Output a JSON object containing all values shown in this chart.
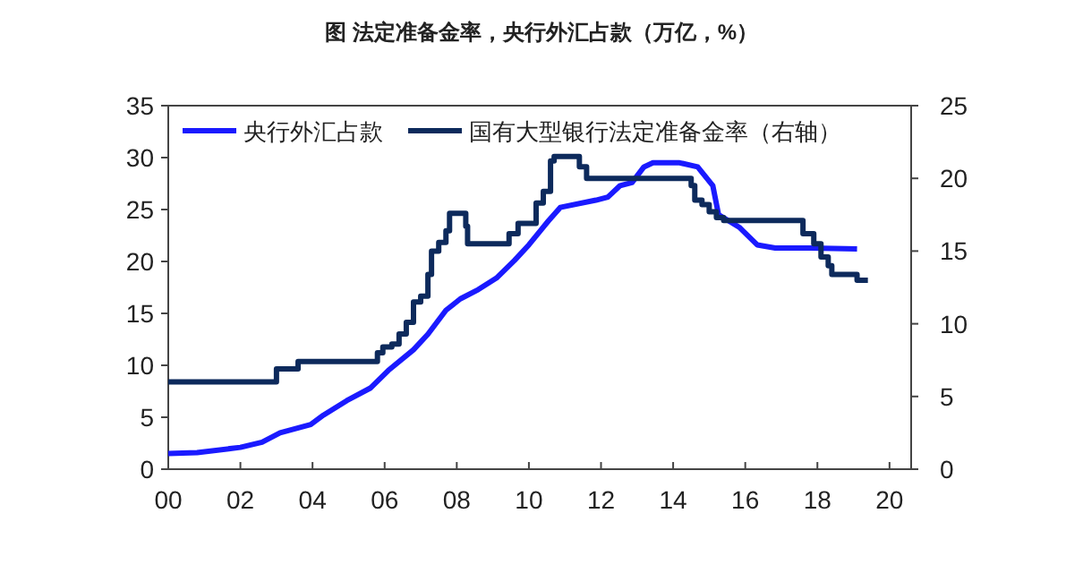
{
  "chart_data": {
    "type": "line",
    "title": "图  法定准备金率，央行外汇占款（万亿，%）",
    "xlim": [
      0,
      20.6
    ],
    "xticks": [
      {
        "value": 0,
        "label": "00"
      },
      {
        "value": 2,
        "label": "02"
      },
      {
        "value": 4,
        "label": "04"
      },
      {
        "value": 6,
        "label": "06"
      },
      {
        "value": 8,
        "label": "08"
      },
      {
        "value": 10,
        "label": "10"
      },
      {
        "value": 12,
        "label": "12"
      },
      {
        "value": 14,
        "label": "14"
      },
      {
        "value": 16,
        "label": "16"
      },
      {
        "value": 18,
        "label": "18"
      },
      {
        "value": 20,
        "label": "20"
      }
    ],
    "ylim": [
      0,
      35
    ],
    "yticks": [
      0,
      5,
      10,
      15,
      20,
      25,
      30,
      35
    ],
    "y2lim": [
      0,
      25
    ],
    "y2ticks": [
      0,
      5,
      10,
      15,
      20,
      25
    ],
    "legend": "top",
    "grid": false,
    "series": [
      {
        "name": "央行外汇占款",
        "color": "#1a1aff",
        "x": [
          0,
          0.8,
          2.0,
          2.6,
          3.1,
          3.95,
          4.3,
          4.95,
          5.6,
          6.1,
          6.8,
          7.2,
          7.7,
          8.1,
          8.6,
          9.1,
          9.6,
          10.0,
          10.54,
          10.87,
          11.86,
          12.19,
          12.53,
          12.86,
          13.19,
          13.44,
          14.18,
          14.68,
          15.1,
          15.26,
          15.83,
          16.33,
          16.83,
          17.8,
          19.1
        ],
        "values": [
          1.5,
          1.6,
          2.1,
          2.6,
          3.5,
          4.3,
          5.2,
          6.6,
          7.8,
          9.5,
          11.5,
          13.0,
          15.3,
          16.4,
          17.3,
          18.4,
          20.1,
          21.6,
          23.9,
          25.2,
          25.9,
          26.2,
          27.3,
          27.6,
          29.1,
          29.5,
          29.5,
          29.1,
          27.3,
          24.5,
          23.3,
          21.6,
          21.3,
          21.3,
          21.2
        ]
      },
      {
        "name": "国有大型银行法定准备金率（右轴）",
        "type": "step",
        "axis": "y2",
        "color": "#0d2a5c",
        "x": [
          0,
          3.0,
          3.6,
          5.8,
          5.95,
          6.2,
          6.4,
          6.6,
          6.8,
          7.0,
          7.2,
          7.3,
          7.5,
          7.7,
          7.8,
          8.25,
          8.3,
          9.45,
          9.7,
          10.2,
          10.4,
          10.6,
          10.7,
          11.4,
          11.6,
          14.5,
          14.6,
          14.8,
          15.0,
          15.2,
          15.4,
          17.6,
          17.9,
          18.1,
          18.3,
          18.4,
          19.1,
          19.4
        ],
        "values": [
          6.0,
          6.9,
          7.4,
          8.0,
          8.4,
          8.6,
          9.3,
          10.1,
          11.5,
          11.9,
          13.4,
          15.0,
          15.6,
          16.4,
          17.6,
          16.7,
          15.5,
          16.2,
          16.9,
          18.3,
          19.1,
          21.2,
          21.5,
          20.8,
          20.0,
          19.5,
          18.5,
          18.2,
          17.7,
          17.3,
          17.1,
          16.2,
          15.5,
          14.6,
          14.0,
          13.4,
          13.0,
          13.0
        ]
      }
    ]
  }
}
